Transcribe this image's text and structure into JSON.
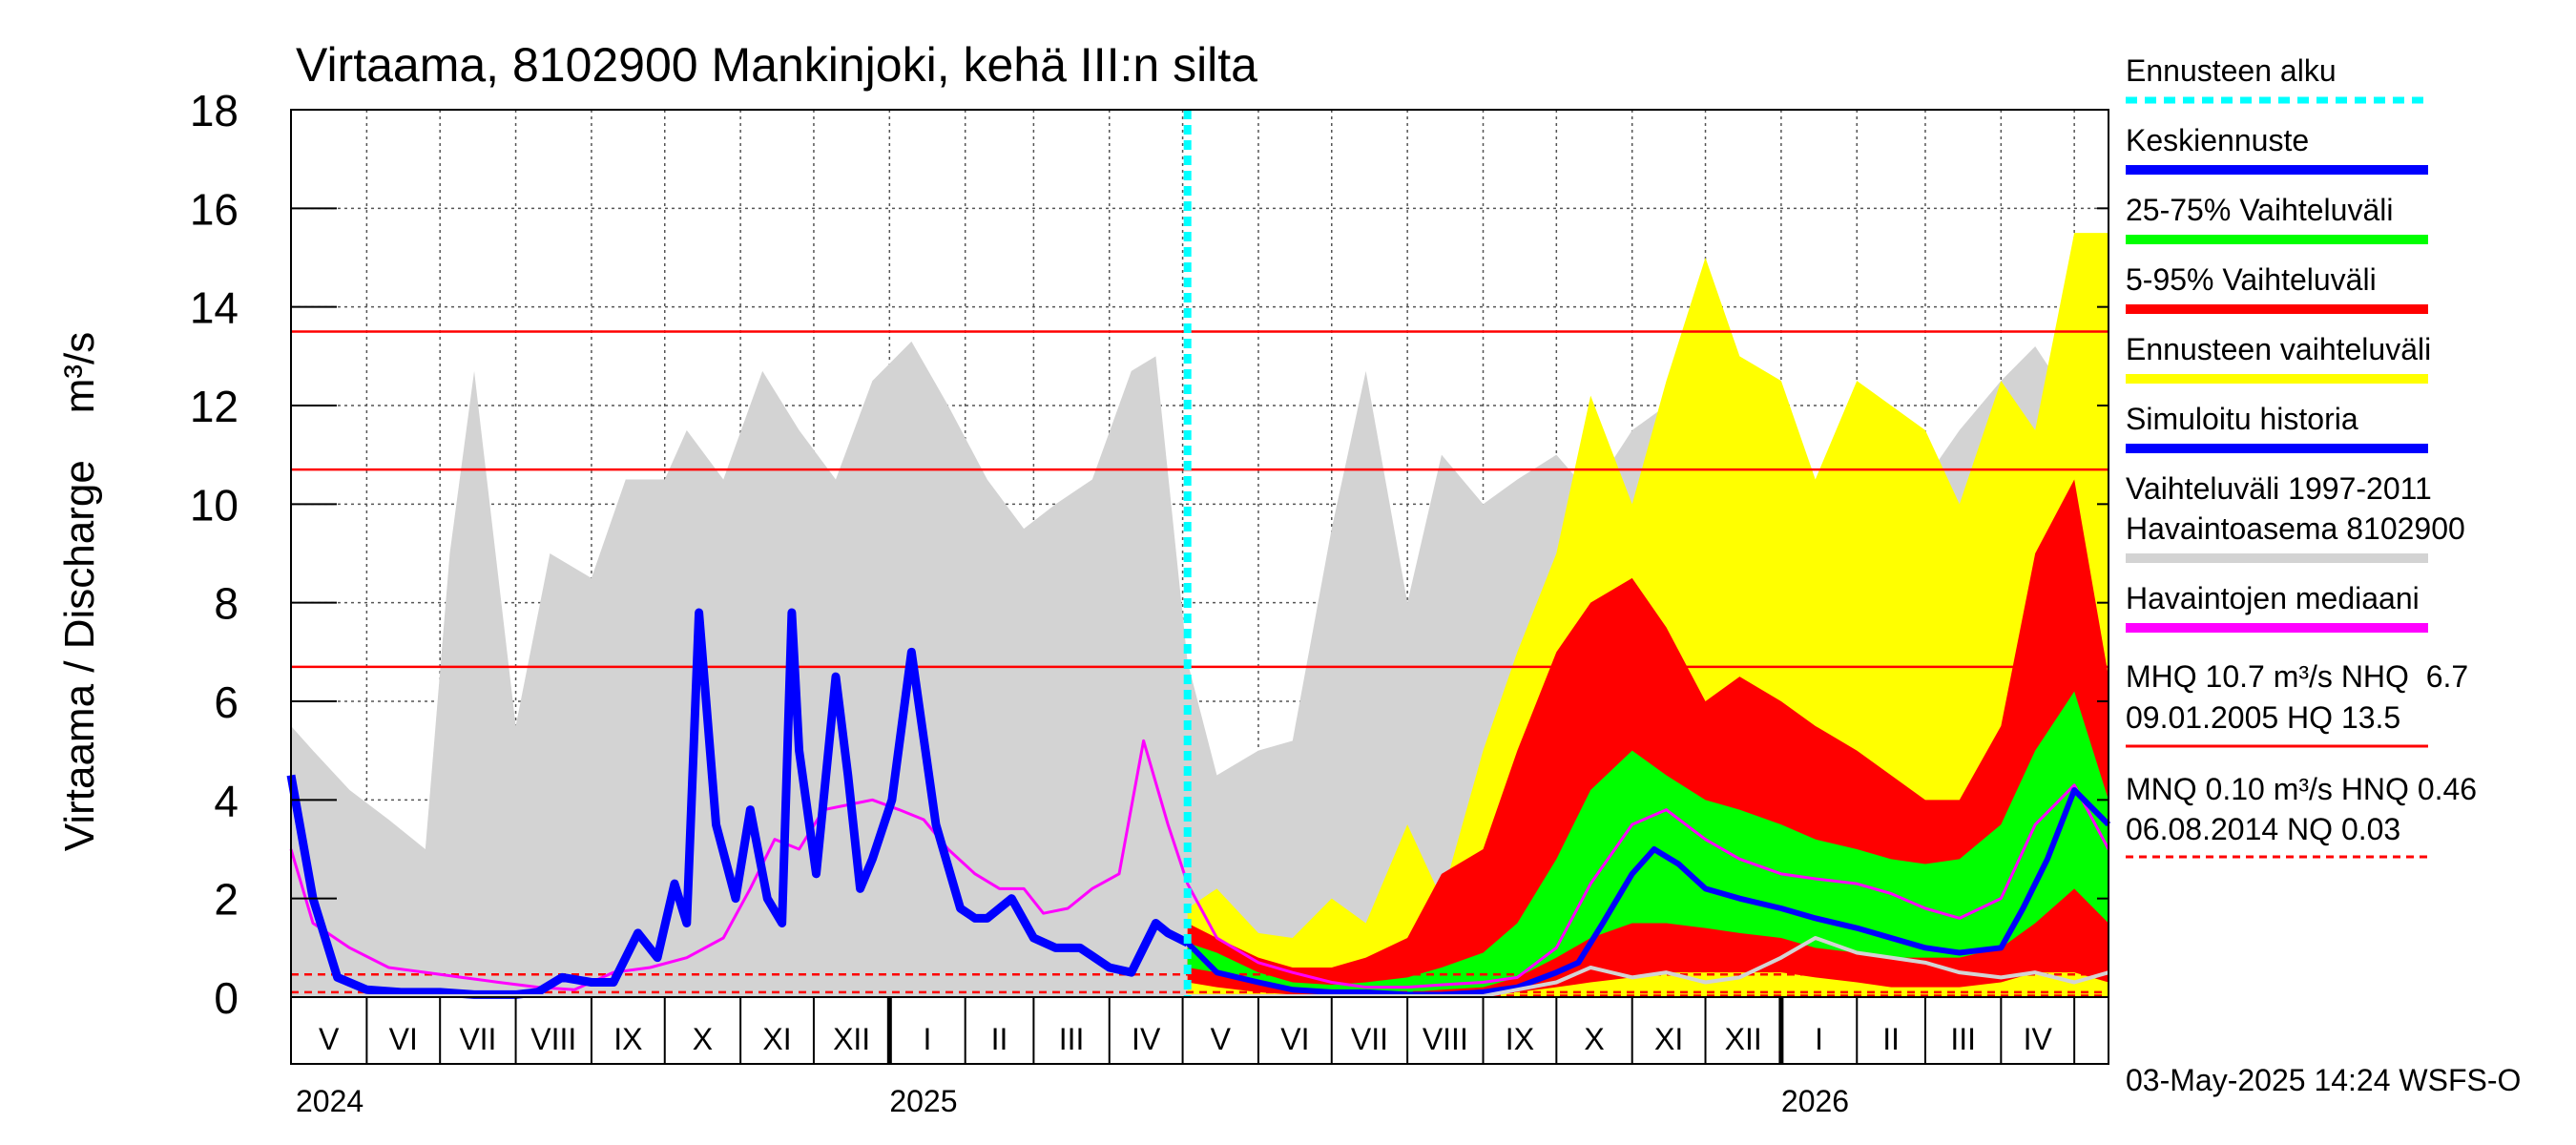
{
  "chart_data": {
    "type": "area",
    "title": "Virtaama, 8102900 Mankinjoki, kehä III:n silta",
    "ylabel": "Virtaama / Discharge    m³/s",
    "ylim": [
      0,
      18
    ],
    "yticks": [
      0,
      2,
      4,
      6,
      8,
      10,
      12,
      14,
      16,
      18
    ],
    "grid": true,
    "legend_position": "right",
    "x_range": [
      "2024-05-01",
      "2026-05-15"
    ],
    "months": [
      "V",
      "VI",
      "VII",
      "VIII",
      "IX",
      "X",
      "XI",
      "XII",
      "I",
      "II",
      "III",
      "IV",
      "V",
      "VI",
      "VII",
      "VIII",
      "IX",
      "X",
      "XI",
      "XII",
      "I",
      "II",
      "III",
      "IV"
    ],
    "years": [
      {
        "label": "2024",
        "date": "2024-05-01"
      },
      {
        "label": "2025",
        "date": "2025-01-01"
      },
      {
        "label": "2026",
        "date": "2026-01-01"
      }
    ],
    "forecast_start": "2025-05-03",
    "reference_lines": [
      {
        "name": "HQ",
        "value": 13.5,
        "style": "solid",
        "color": "#ff0000"
      },
      {
        "name": "MHQ",
        "value": 10.7,
        "style": "solid",
        "color": "#ff0000"
      },
      {
        "name": "NHQ",
        "value": 6.7,
        "style": "solid",
        "color": "#ff0000"
      },
      {
        "name": "HNQ",
        "value": 0.46,
        "style": "dashed",
        "color": "#ff0000"
      },
      {
        "name": "MNQ",
        "value": 0.1,
        "style": "dashed",
        "color": "#ff0000"
      },
      {
        "name": "NQ",
        "value": 0.03,
        "style": "dashed",
        "color": "#ff0000"
      }
    ],
    "series": [
      {
        "name": "Vaihteluväli 1997-2011 Havaintoasema 8102900",
        "kind": "band",
        "color": "#d3d3d3",
        "x": [
          "2024-05-01",
          "2024-05-10",
          "2024-05-25",
          "2024-06-10",
          "2024-06-25",
          "2024-07-05",
          "2024-07-15",
          "2024-08-01",
          "2024-08-15",
          "2024-09-01",
          "2024-09-15",
          "2024-10-01",
          "2024-10-10",
          "2024-10-25",
          "2024-11-10",
          "2024-11-25",
          "2024-12-10",
          "2024-12-25",
          "2025-01-10",
          "2025-01-25",
          "2025-02-10",
          "2025-02-25",
          "2025-03-10",
          "2025-03-25",
          "2025-04-10",
          "2025-04-20",
          "2025-05-03",
          "2025-05-15",
          "2025-06-01",
          "2025-06-15",
          "2025-07-01",
          "2025-07-15",
          "2025-08-01",
          "2025-08-15",
          "2025-09-01",
          "2025-09-15",
          "2025-10-01",
          "2025-10-15",
          "2025-11-01",
          "2025-11-15",
          "2025-12-01",
          "2025-12-15",
          "2026-01-01",
          "2026-01-15",
          "2026-02-01",
          "2026-02-15",
          "2026-03-01",
          "2026-03-15",
          "2026-04-01",
          "2026-04-15",
          "2026-05-01",
          "2026-05-15"
        ],
        "high": [
          5.5,
          5.0,
          4.2,
          3.6,
          3.0,
          9.0,
          12.7,
          5.5,
          9.0,
          8.5,
          10.5,
          10.5,
          11.5,
          10.5,
          12.7,
          11.5,
          10.5,
          12.5,
          13.3,
          12.0,
          10.5,
          9.5,
          10.0,
          10.5,
          12.7,
          13.0,
          6.8,
          4.5,
          5.0,
          5.2,
          9.5,
          12.7,
          8.0,
          11.0,
          10.0,
          10.5,
          11.0,
          10.2,
          11.5,
          12.0,
          12.5,
          12.3,
          9.0,
          10.2,
          11.5,
          11.0,
          10.5,
          11.5,
          12.5,
          13.2,
          12.0,
          5.5
        ],
        "low": [
          0.0,
          0.0,
          0.0,
          0.0,
          0.0,
          0.0,
          0.0,
          0.0,
          0.0,
          0.0,
          0.0,
          0.0,
          0.0,
          0.0,
          0.0,
          0.0,
          0.0,
          0.0,
          0.0,
          0.0,
          0.0,
          0.0,
          0.0,
          0.0,
          0.0,
          0.0,
          0.0,
          0.0,
          0.0,
          0.0,
          0.0,
          0.0,
          0.0,
          0.0,
          0.0,
          0.0,
          0.0,
          0.0,
          0.0,
          0.0,
          0.0,
          0.0,
          0.0,
          0.0,
          0.0,
          0.0,
          0.0,
          0.0,
          0.0,
          0.0,
          0.0,
          0.0
        ]
      },
      {
        "name": "Ennusteen vaihteluväli",
        "kind": "band",
        "color": "#ffff00",
        "x": [
          "2025-05-03",
          "2025-05-15",
          "2025-06-01",
          "2025-06-15",
          "2025-07-01",
          "2025-07-15",
          "2025-08-01",
          "2025-08-15",
          "2025-09-01",
          "2025-09-15",
          "2025-10-01",
          "2025-10-15",
          "2025-11-01",
          "2025-11-15",
          "2025-12-01",
          "2025-12-15",
          "2026-01-01",
          "2026-01-15",
          "2026-02-01",
          "2026-02-15",
          "2026-03-01",
          "2026-03-15",
          "2026-04-01",
          "2026-04-15",
          "2026-05-01",
          "2026-05-15"
        ],
        "high": [
          1.8,
          2.2,
          1.3,
          1.2,
          2.0,
          1.5,
          3.5,
          2.0,
          5.0,
          7.0,
          9.0,
          12.2,
          10.0,
          12.5,
          15.0,
          13.0,
          12.5,
          10.5,
          12.5,
          12.0,
          11.5,
          10.0,
          12.5,
          11.5,
          15.5,
          15.5
        ],
        "low": [
          0.0,
          0.0,
          0.0,
          0.0,
          0.0,
          0.0,
          0.0,
          0.0,
          0.0,
          0.0,
          0.0,
          0.0,
          0.0,
          0.0,
          0.0,
          0.0,
          0.0,
          0.0,
          0.0,
          0.0,
          0.0,
          0.0,
          0.0,
          0.0,
          0.0,
          0.0
        ]
      },
      {
        "name": "5-95% Vaihteluväli",
        "kind": "band",
        "color": "#ff0000",
        "x": [
          "2025-05-03",
          "2025-05-15",
          "2025-06-01",
          "2025-06-15",
          "2025-07-01",
          "2025-07-15",
          "2025-08-01",
          "2025-08-15",
          "2025-09-01",
          "2025-09-15",
          "2025-10-01",
          "2025-10-15",
          "2025-11-01",
          "2025-11-15",
          "2025-12-01",
          "2025-12-15",
          "2026-01-01",
          "2026-01-15",
          "2026-02-01",
          "2026-02-15",
          "2026-03-01",
          "2026-03-15",
          "2026-04-01",
          "2026-04-15",
          "2026-05-01",
          "2026-05-15"
        ],
        "high": [
          1.5,
          1.2,
          0.8,
          0.6,
          0.6,
          0.8,
          1.2,
          2.5,
          3.0,
          5.0,
          7.0,
          8.0,
          8.5,
          7.5,
          6.0,
          6.5,
          6.0,
          5.5,
          5.0,
          4.5,
          4.0,
          4.0,
          5.5,
          9.0,
          10.5,
          6.5
        ],
        "low": [
          0.3,
          0.2,
          0.1,
          0.05,
          0.05,
          0.05,
          0.05,
          0.05,
          0.05,
          0.1,
          0.2,
          0.3,
          0.4,
          0.5,
          0.5,
          0.5,
          0.5,
          0.4,
          0.3,
          0.2,
          0.2,
          0.2,
          0.3,
          0.5,
          0.5,
          0.3
        ]
      },
      {
        "name": "25-75% Vaihteluväli",
        "kind": "band",
        "color": "#00ff00",
        "x": [
          "2025-05-03",
          "2025-05-15",
          "2025-06-01",
          "2025-06-15",
          "2025-07-01",
          "2025-07-15",
          "2025-08-01",
          "2025-08-15",
          "2025-09-01",
          "2025-09-15",
          "2025-10-01",
          "2025-10-15",
          "2025-11-01",
          "2025-11-15",
          "2025-12-01",
          "2025-12-15",
          "2026-01-01",
          "2026-01-15",
          "2026-02-01",
          "2026-02-15",
          "2026-03-01",
          "2026-03-15",
          "2026-04-01",
          "2026-04-15",
          "2026-05-01",
          "2026-05-15"
        ],
        "high": [
          1.1,
          0.9,
          0.5,
          0.3,
          0.25,
          0.3,
          0.4,
          0.6,
          0.9,
          1.5,
          2.8,
          4.2,
          5.0,
          4.5,
          4.0,
          3.8,
          3.5,
          3.2,
          3.0,
          2.8,
          2.7,
          2.8,
          3.5,
          5.0,
          6.2,
          4.0
        ],
        "low": [
          0.6,
          0.5,
          0.3,
          0.15,
          0.1,
          0.1,
          0.1,
          0.15,
          0.2,
          0.4,
          0.8,
          1.2,
          1.5,
          1.5,
          1.4,
          1.3,
          1.2,
          1.0,
          0.9,
          0.8,
          0.8,
          0.8,
          1.0,
          1.5,
          2.2,
          1.5
        ]
      },
      {
        "name": "Havaintojen mediaani",
        "kind": "line",
        "color": "#ff00ff",
        "width": 3,
        "x": [
          "2024-05-01",
          "2024-05-10",
          "2024-05-25",
          "2024-06-10",
          "2024-06-25",
          "2024-07-10",
          "2024-07-25",
          "2024-08-10",
          "2024-08-25",
          "2024-09-10",
          "2024-09-25",
          "2024-10-10",
          "2024-10-25",
          "2024-11-05",
          "2024-11-15",
          "2024-11-25",
          "2024-12-05",
          "2024-12-15",
          "2024-12-25",
          "2025-01-05",
          "2025-01-15",
          "2025-01-25",
          "2025-02-05",
          "2025-02-15",
          "2025-02-25",
          "2025-03-05",
          "2025-03-15",
          "2025-03-25",
          "2025-04-05",
          "2025-04-15",
          "2025-04-25",
          "2025-05-03",
          "2025-05-15",
          "2025-06-01",
          "2025-06-15",
          "2025-07-01",
          "2025-07-15",
          "2025-08-01",
          "2025-08-15",
          "2025-09-01",
          "2025-09-15",
          "2025-10-01",
          "2025-10-15",
          "2025-11-01",
          "2025-11-15",
          "2025-12-01",
          "2025-12-15",
          "2026-01-01",
          "2026-01-15",
          "2026-02-01",
          "2026-02-15",
          "2026-03-01",
          "2026-03-15",
          "2026-04-01",
          "2026-04-15",
          "2026-05-01",
          "2026-05-15"
        ],
        "y": [
          3.0,
          1.5,
          1.0,
          0.6,
          0.5,
          0.4,
          0.3,
          0.2,
          0.15,
          0.5,
          0.6,
          0.8,
          1.2,
          2.2,
          3.2,
          3.0,
          3.8,
          3.9,
          4.0,
          3.8,
          3.6,
          3.0,
          2.5,
          2.2,
          2.2,
          1.7,
          1.8,
          2.2,
          2.5,
          5.2,
          3.5,
          2.3,
          1.2,
          0.7,
          0.5,
          0.3,
          0.2,
          0.2,
          0.25,
          0.3,
          0.4,
          1.0,
          2.3,
          3.5,
          3.8,
          3.2,
          2.8,
          2.5,
          2.4,
          2.3,
          2.1,
          1.8,
          1.6,
          2.0,
          3.5,
          4.3,
          3.0
        ]
      },
      {
        "name": "Simuloitu historia",
        "kind": "line",
        "color": "#0000ff",
        "width": 9,
        "x": [
          "2024-05-01",
          "2024-05-10",
          "2024-05-20",
          "2024-06-01",
          "2024-06-15",
          "2024-07-01",
          "2024-07-15",
          "2024-08-01",
          "2024-08-10",
          "2024-08-20",
          "2024-09-01",
          "2024-09-10",
          "2024-09-20",
          "2024-09-28",
          "2024-10-05",
          "2024-10-10",
          "2024-10-15",
          "2024-10-22",
          "2024-10-30",
          "2024-11-05",
          "2024-11-12",
          "2024-11-18",
          "2024-11-22",
          "2024-11-25",
          "2024-12-02",
          "2024-12-10",
          "2024-12-15",
          "2024-12-20",
          "2024-12-25",
          "2025-01-02",
          "2025-01-10",
          "2025-01-20",
          "2025-01-30",
          "2025-02-05",
          "2025-02-10",
          "2025-02-20",
          "2025-03-01",
          "2025-03-10",
          "2025-03-20",
          "2025-04-01",
          "2025-04-10",
          "2025-04-20",
          "2025-04-25",
          "2025-05-03"
        ],
        "y": [
          4.5,
          2.0,
          0.4,
          0.15,
          0.1,
          0.1,
          0.05,
          0.05,
          0.1,
          0.4,
          0.3,
          0.3,
          1.3,
          0.8,
          2.3,
          1.5,
          7.8,
          3.5,
          2.0,
          3.8,
          2.0,
          1.5,
          7.8,
          5.0,
          2.5,
          6.5,
          4.5,
          2.2,
          2.8,
          4.0,
          7.0,
          3.5,
          1.8,
          1.6,
          1.6,
          2.0,
          1.2,
          1.0,
          1.0,
          0.6,
          0.5,
          1.5,
          1.3,
          1.1
        ]
      },
      {
        "name": "Keskiennuste",
        "kind": "line",
        "color": "#0000ff",
        "width": 6,
        "x": [
          "2025-05-03",
          "2025-05-15",
          "2025-06-01",
          "2025-06-15",
          "2025-07-01",
          "2025-07-15",
          "2025-08-01",
          "2025-08-15",
          "2025-09-01",
          "2025-09-15",
          "2025-10-01",
          "2025-10-10",
          "2025-10-20",
          "2025-11-01",
          "2025-11-10",
          "2025-11-20",
          "2025-12-01",
          "2025-12-15",
          "2026-01-01",
          "2026-01-15",
          "2026-02-01",
          "2026-02-15",
          "2026-03-01",
          "2026-03-15",
          "2026-04-01",
          "2026-04-10",
          "2026-04-20",
          "2026-05-01",
          "2026-05-15"
        ],
        "y": [
          1.1,
          0.5,
          0.3,
          0.15,
          0.1,
          0.1,
          0.05,
          0.05,
          0.1,
          0.2,
          0.5,
          0.7,
          1.5,
          2.5,
          3.0,
          2.7,
          2.2,
          2.0,
          1.8,
          1.6,
          1.4,
          1.2,
          1.0,
          0.9,
          1.0,
          1.8,
          2.8,
          4.2,
          3.5
        ]
      },
      {
        "name": "Observed minimum",
        "kind": "line",
        "color": "#d3d3d3",
        "width": 4,
        "x": [
          "2024-05-01",
          "2025-05-03",
          "2025-09-01",
          "2025-10-01",
          "2025-10-15",
          "2025-11-01",
          "2025-11-15",
          "2025-12-01",
          "2025-12-15",
          "2026-01-01",
          "2026-01-15",
          "2026-02-01",
          "2026-02-15",
          "2026-03-01",
          "2026-03-15",
          "2026-04-01",
          "2026-04-15",
          "2026-05-01",
          "2026-05-15"
        ],
        "y": [
          0.02,
          0.02,
          0.02,
          0.3,
          0.6,
          0.4,
          0.5,
          0.3,
          0.4,
          0.8,
          1.2,
          0.9,
          0.8,
          0.7,
          0.5,
          0.4,
          0.5,
          0.3,
          0.5
        ]
      }
    ],
    "legend": [
      {
        "label": "Ennusteen alku",
        "color": "#00ffff",
        "style": "dashed"
      },
      {
        "label": "Keskiennuste",
        "color": "#0000ff",
        "style": "solid"
      },
      {
        "label": "25-75% Vaihteluväli",
        "color": "#00ff00",
        "style": "solid"
      },
      {
        "label": "5-95% Vaihteluväli",
        "color": "#ff0000",
        "style": "solid"
      },
      {
        "label": "Ennusteen vaihteluväli",
        "color": "#ffff00",
        "style": "solid"
      },
      {
        "label": "Simuloitu historia",
        "color": "#0000ff",
        "style": "solid"
      },
      {
        "label": "Vaihteluväli 1997-2011",
        "label2": " Havaintoasema 8102900",
        "color": "#d3d3d3",
        "style": "solid"
      },
      {
        "label": "Havaintojen mediaani",
        "color": "#ff00ff",
        "style": "solid"
      }
    ],
    "stats": {
      "line1": "MHQ 10.7 m³/s NHQ  6.7",
      "line2": "09.01.2005 HQ 13.5",
      "line3": "MNQ 0.10 m³/s HNQ 0.46",
      "line4": "06.08.2014 NQ 0.03"
    },
    "footer": "03-May-2025 14:24 WSFS-O"
  }
}
